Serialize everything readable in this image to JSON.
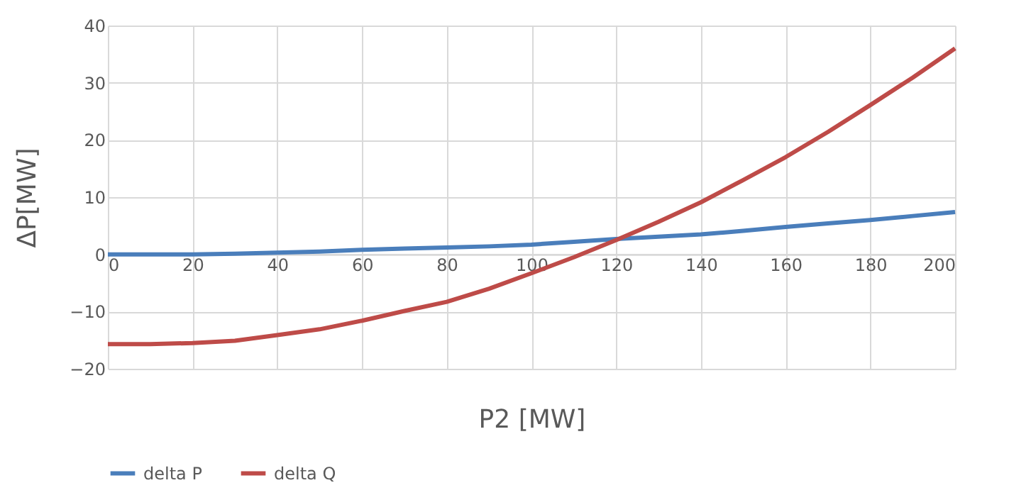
{
  "chart_data": {
    "type": "line",
    "xlabel": "P2 [MW]",
    "ylabel": "ΔP[MW]",
    "x": [
      0,
      10,
      20,
      30,
      40,
      50,
      60,
      70,
      80,
      90,
      100,
      110,
      120,
      130,
      140,
      150,
      160,
      170,
      180,
      190,
      200
    ],
    "series": [
      {
        "name": "delta P",
        "color": "#4a7ebb",
        "values": [
          0,
          0,
          0,
          0.1,
          0.3,
          0.5,
          0.8,
          1.0,
          1.2,
          1.4,
          1.7,
          2.2,
          2.7,
          3.1,
          3.5,
          4.1,
          4.8,
          5.4,
          6.0,
          6.7,
          7.4
        ]
      },
      {
        "name": "delta Q",
        "color": "#be4b48",
        "values": [
          -15.7,
          -15.7,
          -15.5,
          -15.1,
          -14.1,
          -13.1,
          -11.6,
          -9.9,
          -8.3,
          -6.0,
          -3.3,
          -0.5,
          2.5,
          5.7,
          9.1,
          13.0,
          17.0,
          21.4,
          26.1,
          30.9,
          36.0
        ]
      }
    ],
    "xlim": [
      0,
      200
    ],
    "xticks": [
      0,
      20,
      40,
      60,
      80,
      100,
      120,
      140,
      160,
      180,
      200
    ],
    "ylim": [
      -20,
      40
    ],
    "yticks": [
      -20,
      -10,
      0,
      10,
      20,
      30,
      40
    ],
    "grid": true,
    "legend": "bottom",
    "marker": "none",
    "line_style": "solid"
  }
}
